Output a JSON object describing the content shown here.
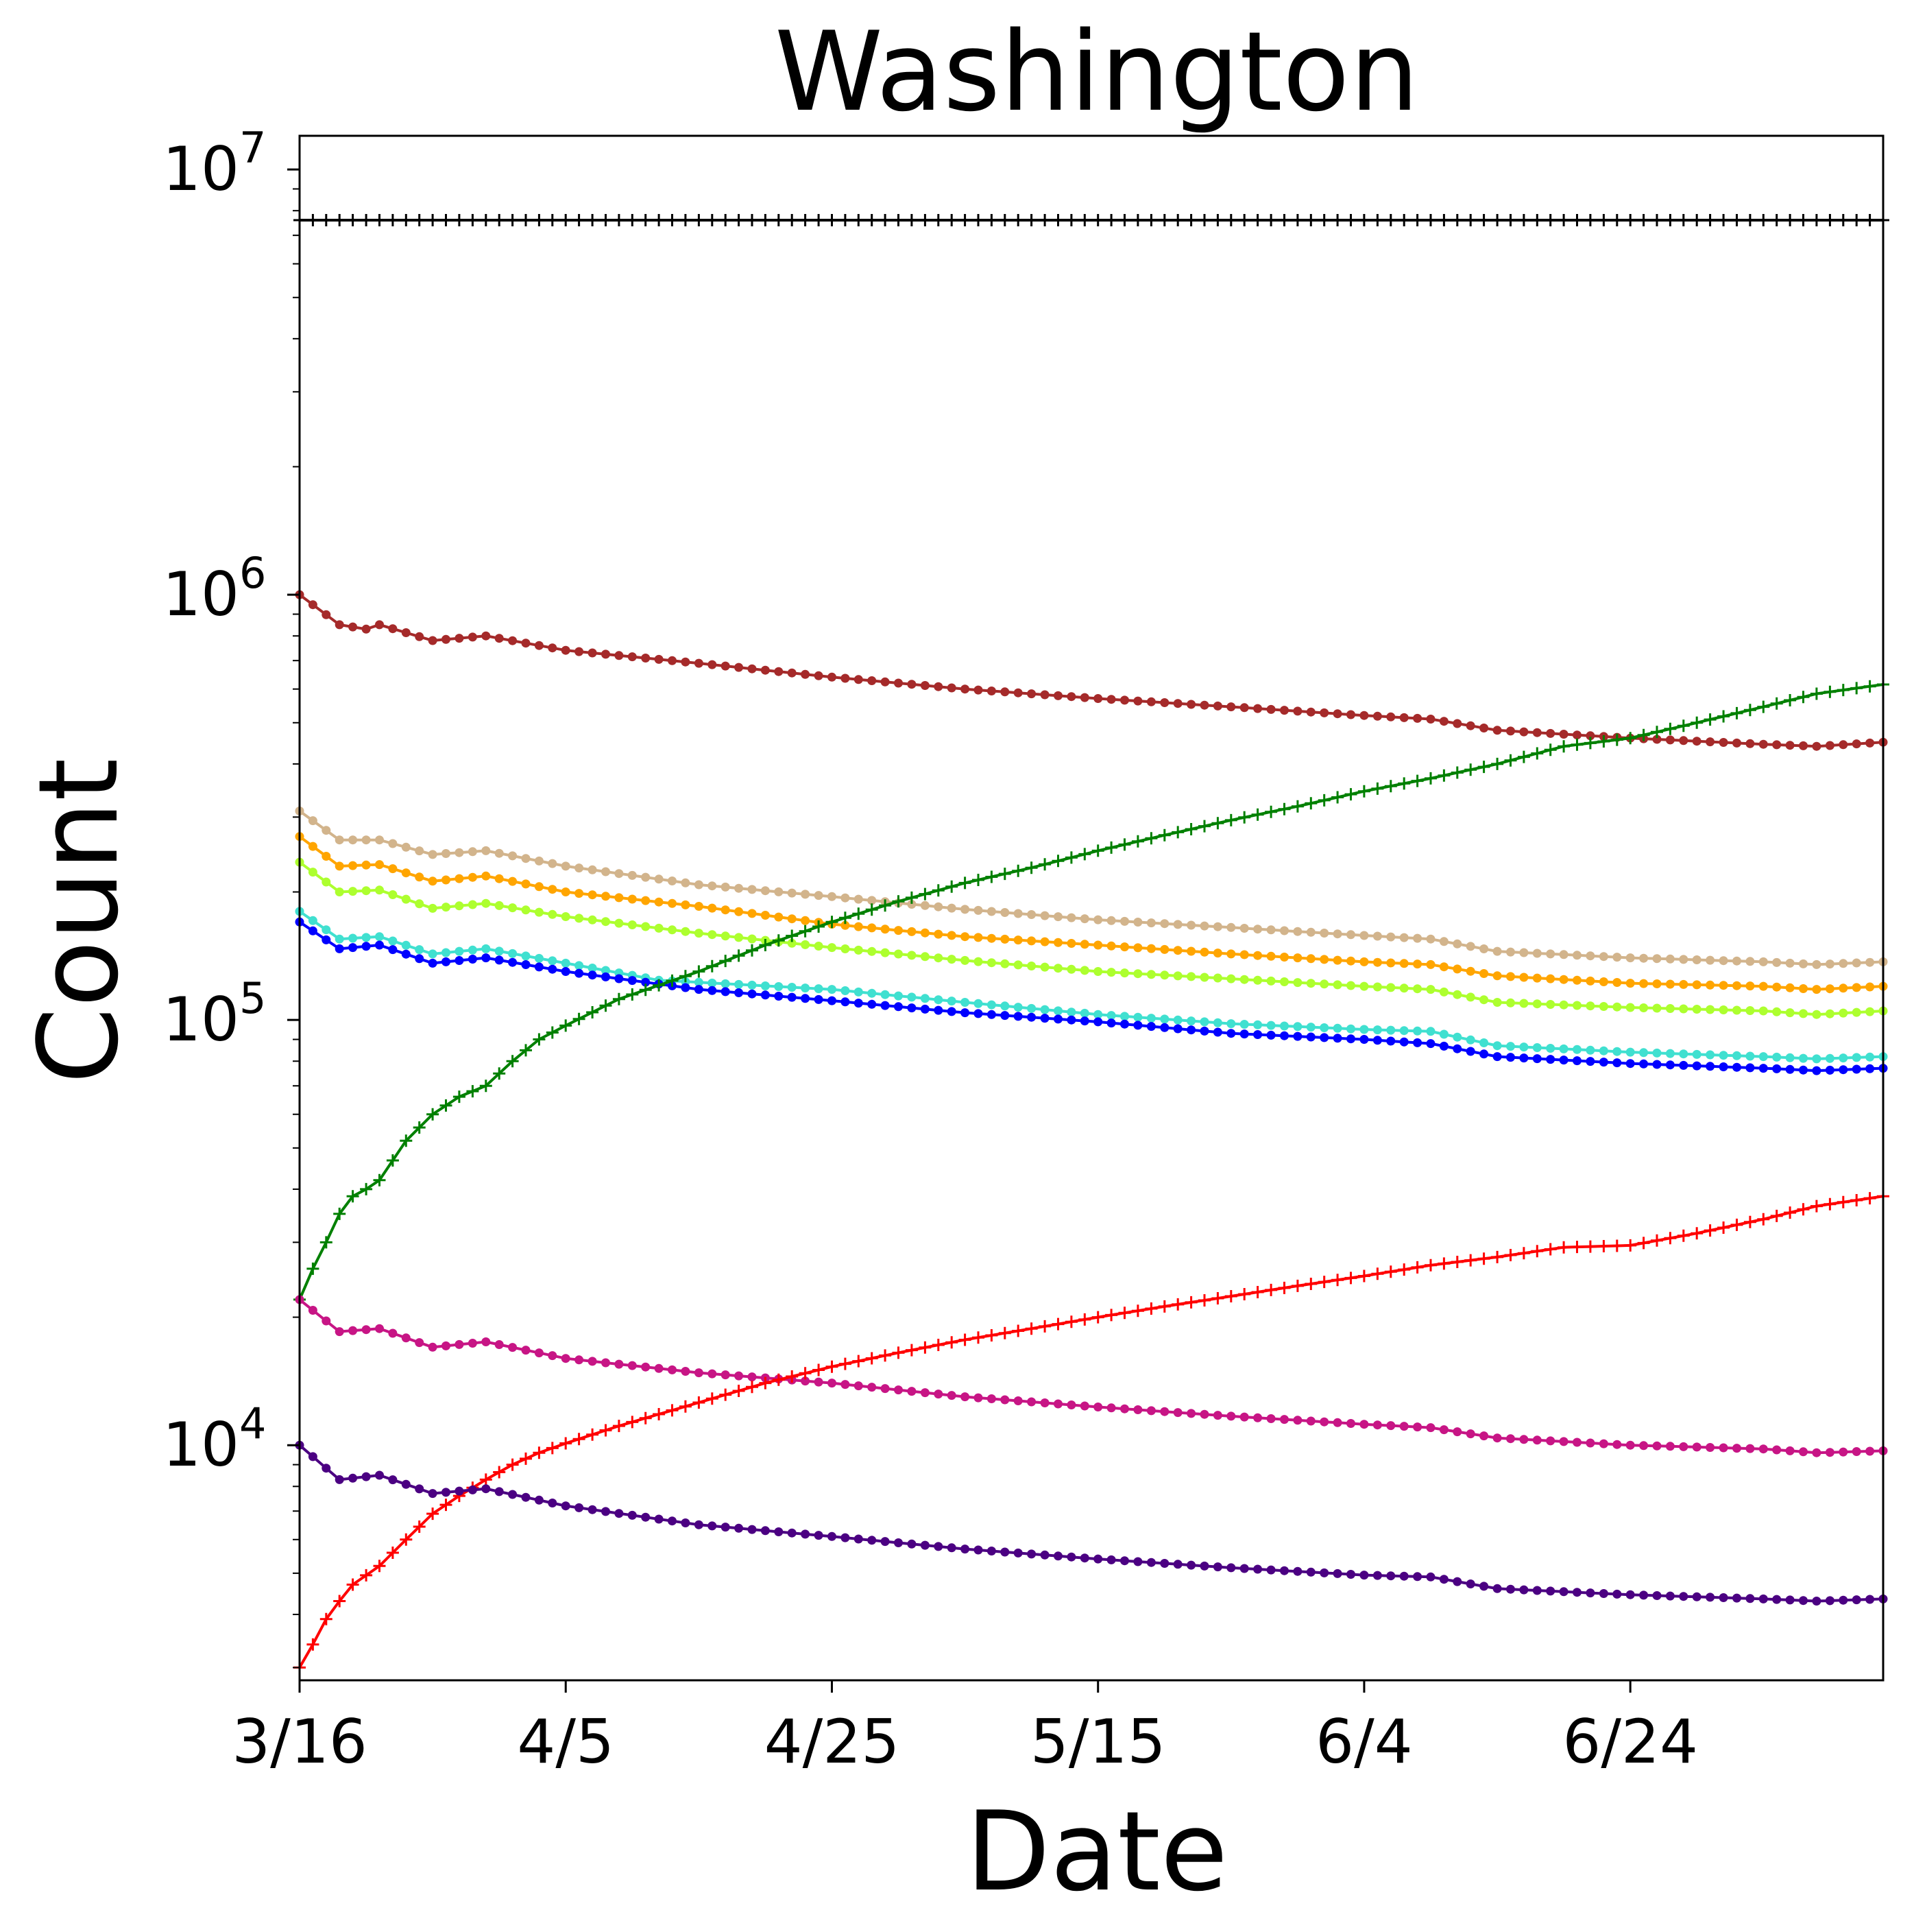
{
  "chart_data": {
    "type": "line",
    "title": "Washington",
    "xlabel": "Date",
    "ylabel": "Count",
    "yscale": "log",
    "ylim": [
      2800,
      12000000
    ],
    "x_start_date": "3/16",
    "x_end_date": "7/13",
    "x_tick_labels": [
      "3/16",
      "4/5",
      "4/25",
      "5/15",
      "6/4",
      "6/24"
    ],
    "y_tick_labels": [
      {
        "value": 10000,
        "base": "10",
        "exp": "4"
      },
      {
        "value": 100000,
        "base": "10",
        "exp": "5"
      },
      {
        "value": 1000000,
        "base": "10",
        "exp": "6"
      },
      {
        "value": 10000000,
        "base": "10",
        "exp": "7"
      }
    ],
    "grid": false,
    "series": [
      {
        "color": "#000000",
        "marker": "plus",
        "values": [
          [
            "3/16",
            7600000
          ],
          [
            "7/13",
            7600000
          ]
        ]
      },
      {
        "color": "#a52a2a",
        "marker": "dot",
        "values": [
          [
            "3/16",
            1000000
          ],
          [
            "3/19",
            850000
          ],
          [
            "3/21",
            830000
          ],
          [
            "3/22",
            850000
          ],
          [
            "3/26",
            780000
          ],
          [
            "3/30",
            800000
          ],
          [
            "4/5",
            740000
          ],
          [
            "4/15",
            690000
          ],
          [
            "4/25",
            640000
          ],
          [
            "5/5",
            600000
          ],
          [
            "5/15",
            570000
          ],
          [
            "5/25",
            545000
          ],
          [
            "6/4",
            520000
          ],
          [
            "6/9",
            510000
          ],
          [
            "6/14",
            480000
          ],
          [
            "6/24",
            460000
          ],
          [
            "7/4",
            445000
          ],
          [
            "7/8",
            440000
          ],
          [
            "7/13",
            450000
          ]
        ]
      },
      {
        "color": "#d2b48c",
        "marker": "dot",
        "values": [
          [
            "3/16",
            310000
          ],
          [
            "3/19",
            265000
          ],
          [
            "3/22",
            265000
          ],
          [
            "3/26",
            245000
          ],
          [
            "3/30",
            250000
          ],
          [
            "4/5",
            230000
          ],
          [
            "4/15",
            208000
          ],
          [
            "4/25",
            195000
          ],
          [
            "5/5",
            182000
          ],
          [
            "5/15",
            172000
          ],
          [
            "5/25",
            165000
          ],
          [
            "6/4",
            158000
          ],
          [
            "6/9",
            155000
          ],
          [
            "6/14",
            145000
          ],
          [
            "6/24",
            140000
          ],
          [
            "7/4",
            137000
          ],
          [
            "7/8",
            135000
          ],
          [
            "7/13",
            137000
          ]
        ]
      },
      {
        "color": "#ffa500",
        "marker": "dot",
        "values": [
          [
            "3/16",
            270000
          ],
          [
            "3/19",
            230000
          ],
          [
            "3/22",
            232000
          ],
          [
            "3/26",
            212000
          ],
          [
            "3/30",
            218000
          ],
          [
            "4/5",
            200000
          ],
          [
            "4/15",
            185000
          ],
          [
            "4/25",
            168000
          ],
          [
            "5/5",
            157000
          ],
          [
            "5/15",
            150000
          ],
          [
            "5/25",
            143000
          ],
          [
            "6/4",
            137000
          ],
          [
            "6/9",
            135000
          ],
          [
            "6/14",
            127000
          ],
          [
            "6/24",
            122000
          ],
          [
            "7/4",
            120000
          ],
          [
            "7/8",
            118000
          ],
          [
            "7/13",
            120000
          ]
        ]
      },
      {
        "color": "#adff2f",
        "marker": "dot",
        "values": [
          [
            "3/16",
            235000
          ],
          [
            "3/19",
            200000
          ],
          [
            "3/22",
            202000
          ],
          [
            "3/26",
            183000
          ],
          [
            "3/30",
            188000
          ],
          [
            "4/5",
            175000
          ],
          [
            "4/15",
            160000
          ],
          [
            "4/25",
            148000
          ],
          [
            "5/5",
            138000
          ],
          [
            "5/15",
            130000
          ],
          [
            "5/25",
            125000
          ],
          [
            "6/4",
            120000
          ],
          [
            "6/9",
            118000
          ],
          [
            "6/14",
            110000
          ],
          [
            "6/24",
            107000
          ],
          [
            "7/4",
            105000
          ],
          [
            "7/8",
            103000
          ],
          [
            "7/13",
            105000
          ]
        ]
      },
      {
        "color": "#40e0d0",
        "marker": "dot",
        "values": [
          [
            "3/16",
            180000
          ],
          [
            "3/19",
            155000
          ],
          [
            "3/22",
            157000
          ],
          [
            "3/26",
            143000
          ],
          [
            "3/30",
            147000
          ],
          [
            "4/5",
            136000
          ],
          [
            "4/12",
            124000
          ],
          [
            "4/25",
            118000
          ],
          [
            "5/5",
            110000
          ],
          [
            "5/15",
            103000
          ],
          [
            "5/25",
            98000
          ],
          [
            "6/4",
            95000
          ],
          [
            "6/9",
            94000
          ],
          [
            "6/14",
            87000
          ],
          [
            "6/24",
            84000
          ],
          [
            "7/4",
            82000
          ],
          [
            "7/8",
            81000
          ],
          [
            "7/13",
            82000
          ]
        ]
      },
      {
        "color": "#0000ff",
        "marker": "dot",
        "values": [
          [
            "3/16",
            170000
          ],
          [
            "3/19",
            147000
          ],
          [
            "3/22",
            150000
          ],
          [
            "3/26",
            136000
          ],
          [
            "3/30",
            140000
          ],
          [
            "4/5",
            130000
          ],
          [
            "4/15",
            118000
          ],
          [
            "4/25",
            111000
          ],
          [
            "5/5",
            104000
          ],
          [
            "5/15",
            99000
          ],
          [
            "5/25",
            93000
          ],
          [
            "6/4",
            90000
          ],
          [
            "6/9",
            88000
          ],
          [
            "6/14",
            82000
          ],
          [
            "6/24",
            79000
          ],
          [
            "7/4",
            77000
          ],
          [
            "7/8",
            76000
          ],
          [
            "7/13",
            77000
          ]
        ]
      },
      {
        "color": "#008000",
        "marker": "plus",
        "values": [
          [
            "3/16",
            22000
          ],
          [
            "3/17",
            26000
          ],
          [
            "3/18",
            30000
          ],
          [
            "3/19",
            35000
          ],
          [
            "3/20",
            38500
          ],
          [
            "3/21",
            40000
          ],
          [
            "3/22",
            42000
          ],
          [
            "3/24",
            52000
          ],
          [
            "3/26",
            60000
          ],
          [
            "3/28",
            66000
          ],
          [
            "3/30",
            70000
          ],
          [
            "4/1",
            80000
          ],
          [
            "4/3",
            90000
          ],
          [
            "4/5",
            97000
          ],
          [
            "4/9",
            112000
          ],
          [
            "4/15",
            130000
          ],
          [
            "4/20",
            150000
          ],
          [
            "4/25",
            170000
          ],
          [
            "4/30",
            190000
          ],
          [
            "5/5",
            210000
          ],
          [
            "5/10",
            228000
          ],
          [
            "5/15",
            250000
          ],
          [
            "5/20",
            272000
          ],
          [
            "5/25",
            295000
          ],
          [
            "5/30",
            318000
          ],
          [
            "6/4",
            345000
          ],
          [
            "6/9",
            370000
          ],
          [
            "6/14",
            400000
          ],
          [
            "6/19",
            440000
          ],
          [
            "6/24",
            460000
          ],
          [
            "6/29",
            500000
          ],
          [
            "7/4",
            545000
          ],
          [
            "7/8",
            585000
          ],
          [
            "7/13",
            615000
          ]
        ]
      },
      {
        "color": "#c71585",
        "marker": "dot",
        "values": [
          [
            "3/16",
            22000
          ],
          [
            "3/19",
            18500
          ],
          [
            "3/22",
            18800
          ],
          [
            "3/26",
            17000
          ],
          [
            "3/30",
            17500
          ],
          [
            "4/5",
            16000
          ],
          [
            "4/15",
            14800
          ],
          [
            "4/25",
            14000
          ],
          [
            "5/5",
            13000
          ],
          [
            "5/15",
            12300
          ],
          [
            "5/25",
            11700
          ],
          [
            "6/4",
            11200
          ],
          [
            "6/9",
            11000
          ],
          [
            "6/14",
            10400
          ],
          [
            "6/24",
            10000
          ],
          [
            "7/4",
            9800
          ],
          [
            "7/8",
            9600
          ],
          [
            "7/13",
            9700
          ]
        ]
      },
      {
        "color": "#ff0000",
        "marker": "plus",
        "values": [
          [
            "3/16",
            3000
          ],
          [
            "3/17",
            3400
          ],
          [
            "3/18",
            3900
          ],
          [
            "3/19",
            4300
          ],
          [
            "3/20",
            4700
          ],
          [
            "3/22",
            5200
          ],
          [
            "3/24",
            6000
          ],
          [
            "3/26",
            6900
          ],
          [
            "3/28",
            7600
          ],
          [
            "3/30",
            8300
          ],
          [
            "4/1",
            9000
          ],
          [
            "4/3",
            9600
          ],
          [
            "4/5",
            10100
          ],
          [
            "4/9",
            11100
          ],
          [
            "4/15",
            12600
          ],
          [
            "4/20",
            14000
          ],
          [
            "4/25",
            15300
          ],
          [
            "4/30",
            16500
          ],
          [
            "5/5",
            17700
          ],
          [
            "5/10",
            18800
          ],
          [
            "5/15",
            20000
          ],
          [
            "5/20",
            21200
          ],
          [
            "5/25",
            22400
          ],
          [
            "5/30",
            23700
          ],
          [
            "6/4",
            25000
          ],
          [
            "6/9",
            26500
          ],
          [
            "6/14",
            27700
          ],
          [
            "6/19",
            29200
          ],
          [
            "6/24",
            29500
          ],
          [
            "6/29",
            31500
          ],
          [
            "7/4",
            34000
          ],
          [
            "7/8",
            36500
          ],
          [
            "7/13",
            38500
          ]
        ]
      },
      {
        "color": "#4b0082",
        "marker": "dot",
        "values": [
          [
            "3/16",
            10000
          ],
          [
            "3/19",
            8300
          ],
          [
            "3/22",
            8500
          ],
          [
            "3/26",
            7700
          ],
          [
            "3/30",
            7900
          ],
          [
            "4/5",
            7200
          ],
          [
            "4/15",
            6500
          ],
          [
            "4/25",
            6100
          ],
          [
            "5/5",
            5700
          ],
          [
            "5/15",
            5400
          ],
          [
            "5/25",
            5150
          ],
          [
            "6/4",
            4950
          ],
          [
            "6/9",
            4900
          ],
          [
            "6/14",
            4600
          ],
          [
            "6/24",
            4450
          ],
          [
            "7/4",
            4350
          ],
          [
            "7/8",
            4300
          ],
          [
            "7/13",
            4350
          ]
        ]
      }
    ]
  }
}
